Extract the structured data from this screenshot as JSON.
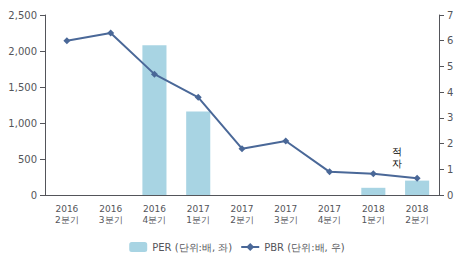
{
  "chart_data": {
    "type": "bar",
    "categories": [
      "2016\n2분기",
      "2016\n3분기",
      "2016\n4분기",
      "2017\n1분기",
      "2017\n2분기",
      "2017\n3분기",
      "2017\n4분기",
      "2018\n1분기",
      "2018\n2분기"
    ],
    "series": [
      {
        "name": "PER (단위:배, 좌)",
        "type": "bar",
        "color": "#a8d4e3",
        "values": [
          null,
          null,
          2080,
          1160,
          null,
          null,
          null,
          100,
          200
        ]
      },
      {
        "name": "PBR (단위:배, 우)",
        "type": "line",
        "axis": "y2",
        "color": "#4a6898",
        "marker": "diamond",
        "values": [
          6.0,
          6.3,
          4.7,
          3.8,
          1.8,
          2.1,
          0.9,
          0.83,
          0.65
        ]
      }
    ],
    "ylim": [
      0,
      2500
    ],
    "yticks": [
      0,
      500,
      1000,
      1500,
      2000,
      2500
    ],
    "y2lim": [
      0,
      7
    ],
    "y2ticks": [
      0,
      1,
      2,
      3,
      4,
      5,
      6,
      7
    ],
    "grid": false,
    "legend": "bottom",
    "annotations": [
      {
        "text": "적\n자",
        "x": 7.55,
        "y": 520
      }
    ]
  }
}
